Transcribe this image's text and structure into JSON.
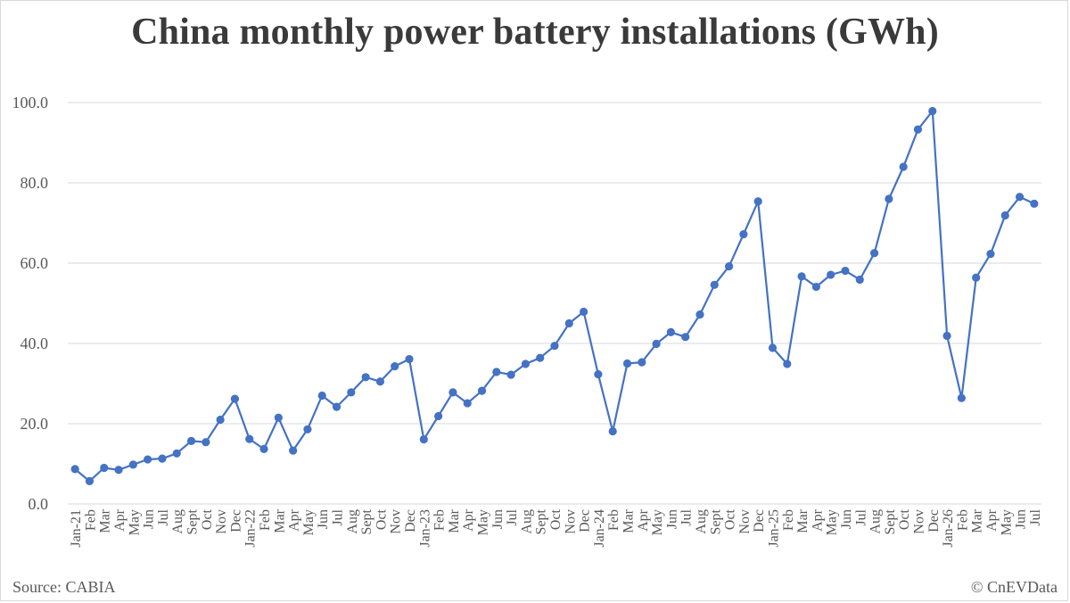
{
  "title": "China monthly power battery installations (GWh)",
  "source": "Source: CABIA",
  "copyright": "© CnEVData",
  "colors": {
    "line": "#4472c4",
    "grid": "#d9d9d9",
    "text": "#595959"
  },
  "chart_data": {
    "type": "line",
    "title": "China monthly power battery installations (GWh)",
    "xlabel": "",
    "ylabel": "",
    "ylim": [
      0,
      100
    ],
    "yticks": [
      "0.0",
      "20.0",
      "40.0",
      "60.0",
      "80.0",
      "100.0"
    ],
    "grid": true,
    "legend": "none",
    "categories": [
      "Jan-21",
      "Feb",
      "Mar",
      "Apr",
      "May",
      "Jun",
      "Jul",
      "Aug",
      "Sept",
      "Oct",
      "Nov",
      "Dec",
      "Jan-22",
      "Feb",
      "Mar",
      "Apr",
      "May",
      "Jun",
      "Jul",
      "Aug",
      "Sept",
      "Oct",
      "Nov",
      "Dec",
      "Jan-23",
      "Feb",
      "Mar",
      "Apr",
      "May",
      "Jun",
      "Jul",
      "Aug",
      "Sept",
      "Oct",
      "Nov",
      "Dec",
      "Jan-24",
      "Feb",
      "Mar",
      "Apr",
      "May",
      "Jun",
      "Jul",
      "Aug",
      "Sept",
      "Oct",
      "Nov",
      "Dec",
      "Jan-25",
      "Feb",
      "Mar",
      "Apr",
      "May",
      "Jun",
      "Jul",
      "Aug",
      "Sept",
      "Oct",
      "Nov",
      "Dec",
      "Jan-26",
      "Feb",
      "Mar",
      "Apr",
      "May",
      "Jun",
      "Jul"
    ],
    "values": [
      8.7,
      5.7,
      9.0,
      8.5,
      9.8,
      11.1,
      11.3,
      12.6,
      15.7,
      15.4,
      21.0,
      26.2,
      16.2,
      13.7,
      21.5,
      13.3,
      18.6,
      27.0,
      24.2,
      27.8,
      31.6,
      30.5,
      34.3,
      36.1,
      16.1,
      21.9,
      27.8,
      25.1,
      28.2,
      32.9,
      32.2,
      34.9,
      36.4,
      39.4,
      45.0,
      47.9,
      32.3,
      18.1,
      35.0,
      35.3,
      39.9,
      42.8,
      41.6,
      47.2,
      54.6,
      59.2,
      67.2,
      75.4,
      38.9,
      34.9,
      56.7,
      54.1,
      57.1,
      58.1,
      55.9,
      62.5,
      76.0,
      84.0,
      93.3,
      97.9,
      41.9,
      26.4,
      56.4,
      62.3,
      71.9,
      76.5,
      74.8
    ]
  }
}
